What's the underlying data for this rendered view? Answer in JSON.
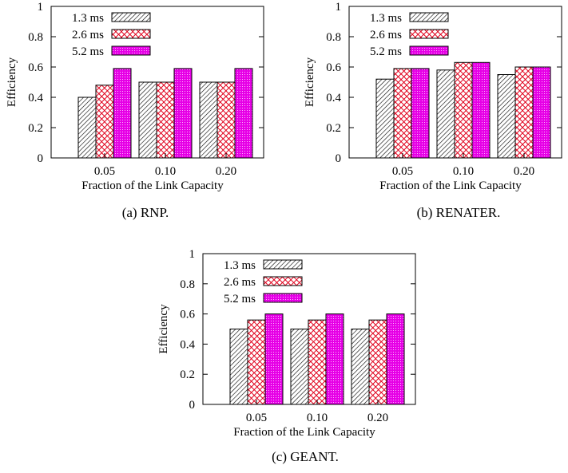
{
  "chart_data": [
    {
      "type": "bar",
      "caption": "(a)  RNP.",
      "xlabel": "Fraction of the Link Capacity",
      "ylabel": "Efficiency",
      "categories": [
        "0.05",
        "0.10",
        "0.20"
      ],
      "yticks": [
        "0",
        "0.2",
        "0.4",
        "0.6",
        "0.8",
        "1"
      ],
      "ylim": [
        0,
        1
      ],
      "legend_position": "top-left",
      "grid": false,
      "series": [
        {
          "name": "1.3 ms",
          "values": [
            0.4,
            0.5,
            0.5
          ]
        },
        {
          "name": "2.6 ms",
          "values": [
            0.48,
            0.5,
            0.5
          ]
        },
        {
          "name": "5.2 ms",
          "values": [
            0.59,
            0.59,
            0.59
          ]
        }
      ]
    },
    {
      "type": "bar",
      "caption": "(b)  RENATER.",
      "xlabel": "Fraction of the Link Capacity",
      "ylabel": "Efficiency",
      "categories": [
        "0.05",
        "0.10",
        "0.20"
      ],
      "yticks": [
        "0",
        "0.2",
        "0.4",
        "0.6",
        "0.8",
        "1"
      ],
      "ylim": [
        0,
        1
      ],
      "legend_position": "top-left",
      "grid": false,
      "series": [
        {
          "name": "1.3 ms",
          "values": [
            0.52,
            0.58,
            0.55
          ]
        },
        {
          "name": "2.6 ms",
          "values": [
            0.59,
            0.63,
            0.6
          ]
        },
        {
          "name": "5.2 ms",
          "values": [
            0.59,
            0.63,
            0.6
          ]
        }
      ]
    },
    {
      "type": "bar",
      "caption": "(c)  GEANT.",
      "xlabel": "Fraction of the Link Capacity",
      "ylabel": "Efficiency",
      "categories": [
        "0.05",
        "0.10",
        "0.20"
      ],
      "yticks": [
        "0",
        "0.2",
        "0.4",
        "0.6",
        "0.8",
        "1"
      ],
      "ylim": [
        0,
        1
      ],
      "legend_position": "top-left",
      "grid": false,
      "series": [
        {
          "name": "1.3 ms",
          "values": [
            0.5,
            0.5,
            0.5
          ]
        },
        {
          "name": "2.6 ms",
          "values": [
            0.56,
            0.56,
            0.56
          ]
        },
        {
          "name": "5.2 ms",
          "values": [
            0.6,
            0.6,
            0.6
          ]
        }
      ]
    }
  ]
}
